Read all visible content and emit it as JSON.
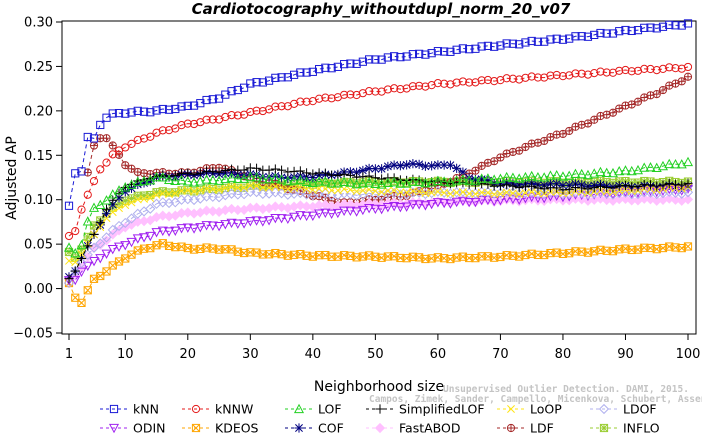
{
  "chart_data": {
    "type": "line",
    "title": "Cardiotocography_withoutdupl_norm_20_v07",
    "xlabel": "Neighborhood size",
    "ylabel": "Adjusted AP",
    "xlim": [
      1,
      100
    ],
    "ylim": [
      -0.05,
      0.3
    ],
    "xticks": [
      "1",
      "10",
      "20",
      "30",
      "40",
      "50",
      "60",
      "70",
      "80",
      "90",
      "100"
    ],
    "yticks": [
      "−0.05",
      "0.00",
      "0.05",
      "0.10",
      "0.15",
      "0.20",
      "0.25",
      "0.30"
    ],
    "grid": false,
    "legend_position": "bottom",
    "credit": [
      "Unsupervised Outlier Detection. DAMI, 2015.",
      "Campos, Zimek, Sander, Campello, Micenkova, Schubert, Assent, Houle"
    ],
    "series": [
      {
        "name": "kNN",
        "color": "#1a1ad6",
        "marker": "square",
        "dash": "4,3",
        "points": [
          [
            1,
            0.092
          ],
          [
            2,
            0.13
          ],
          [
            3,
            0.133
          ],
          [
            4,
            0.17
          ],
          [
            5,
            0.168
          ],
          [
            6,
            0.185
          ],
          [
            7,
            0.193
          ],
          [
            8,
            0.196
          ],
          [
            10,
            0.198
          ],
          [
            15,
            0.2
          ],
          [
            20,
            0.205
          ],
          [
            25,
            0.215
          ],
          [
            30,
            0.23
          ],
          [
            40,
            0.245
          ],
          [
            50,
            0.258
          ],
          [
            60,
            0.266
          ],
          [
            70,
            0.274
          ],
          [
            80,
            0.281
          ],
          [
            90,
            0.29
          ],
          [
            100,
            0.298
          ]
        ]
      },
      {
        "name": "kNNW",
        "color": "#e41a1a",
        "marker": "circle",
        "dash": "4,3",
        "points": [
          [
            1,
            0.058
          ],
          [
            2,
            0.065
          ],
          [
            3,
            0.09
          ],
          [
            4,
            0.105
          ],
          [
            5,
            0.12
          ],
          [
            6,
            0.135
          ],
          [
            8,
            0.15
          ],
          [
            10,
            0.16
          ],
          [
            15,
            0.175
          ],
          [
            20,
            0.185
          ],
          [
            30,
            0.198
          ],
          [
            40,
            0.212
          ],
          [
            50,
            0.222
          ],
          [
            60,
            0.23
          ],
          [
            70,
            0.235
          ],
          [
            80,
            0.24
          ],
          [
            90,
            0.245
          ],
          [
            100,
            0.249
          ]
        ]
      },
      {
        "name": "LOF",
        "color": "#22d022",
        "marker": "triangle",
        "dash": "4,3",
        "points": [
          [
            1,
            0.045
          ],
          [
            2,
            0.04
          ],
          [
            3,
            0.05
          ],
          [
            4,
            0.075
          ],
          [
            5,
            0.09
          ],
          [
            7,
            0.1
          ],
          [
            10,
            0.115
          ],
          [
            15,
            0.125
          ],
          [
            20,
            0.12
          ],
          [
            30,
            0.125
          ],
          [
            40,
            0.12
          ],
          [
            50,
            0.118
          ],
          [
            60,
            0.12
          ],
          [
            70,
            0.124
          ],
          [
            80,
            0.127
          ],
          [
            90,
            0.132
          ],
          [
            100,
            0.142
          ]
        ]
      },
      {
        "name": "SimplifiedLOF",
        "color": "#000000",
        "marker": "plus",
        "dash": "4,3",
        "points": [
          [
            1,
            0.01
          ],
          [
            2,
            0.02
          ],
          [
            3,
            0.035
          ],
          [
            5,
            0.06
          ],
          [
            7,
            0.09
          ],
          [
            10,
            0.115
          ],
          [
            14,
            0.125
          ],
          [
            18,
            0.128
          ],
          [
            25,
            0.132
          ],
          [
            30,
            0.135
          ],
          [
            35,
            0.133
          ],
          [
            40,
            0.13
          ],
          [
            50,
            0.125
          ],
          [
            60,
            0.12
          ],
          [
            70,
            0.116
          ],
          [
            80,
            0.112
          ],
          [
            90,
            0.115
          ],
          [
            100,
            0.118
          ]
        ]
      },
      {
        "name": "LoOP",
        "color": "#ffe414",
        "marker": "x",
        "dash": "4,3",
        "points": [
          [
            1,
            0.03
          ],
          [
            2,
            0.03
          ],
          [
            3,
            0.04
          ],
          [
            5,
            0.06
          ],
          [
            7,
            0.08
          ],
          [
            10,
            0.095
          ],
          [
            15,
            0.105
          ],
          [
            20,
            0.11
          ],
          [
            30,
            0.115
          ],
          [
            40,
            0.112
          ],
          [
            50,
            0.11
          ],
          [
            60,
            0.108
          ],
          [
            70,
            0.107
          ],
          [
            80,
            0.108
          ],
          [
            90,
            0.11
          ],
          [
            100,
            0.114
          ]
        ]
      },
      {
        "name": "LDOF",
        "color": "#b0b0ee",
        "marker": "diamond",
        "dash": "4,3",
        "points": [
          [
            1,
            0.005
          ],
          [
            2,
            0.02
          ],
          [
            3,
            0.03
          ],
          [
            5,
            0.045
          ],
          [
            8,
            0.065
          ],
          [
            10,
            0.075
          ],
          [
            15,
            0.095
          ],
          [
            20,
            0.1
          ],
          [
            30,
            0.108
          ],
          [
            40,
            0.106
          ],
          [
            50,
            0.106
          ],
          [
            60,
            0.108
          ],
          [
            70,
            0.108
          ],
          [
            80,
            0.107
          ],
          [
            90,
            0.107
          ],
          [
            100,
            0.108
          ]
        ]
      },
      {
        "name": "ODIN",
        "color": "#a020f0",
        "marker": "triangle-down",
        "dash": "4,3",
        "points": [
          [
            1,
            0.008
          ],
          [
            2,
            0.01
          ],
          [
            3,
            0.02
          ],
          [
            5,
            0.03
          ],
          [
            7,
            0.04
          ],
          [
            10,
            0.05
          ],
          [
            15,
            0.063
          ],
          [
            20,
            0.068
          ],
          [
            30,
            0.075
          ],
          [
            40,
            0.083
          ],
          [
            50,
            0.09
          ],
          [
            60,
            0.096
          ],
          [
            70,
            0.1
          ],
          [
            80,
            0.104
          ],
          [
            90,
            0.108
          ],
          [
            100,
            0.112
          ]
        ]
      },
      {
        "name": "KDEOS",
        "color": "#ffa500",
        "marker": "square-x",
        "dash": "4,3",
        "points": [
          [
            1,
            0.005
          ],
          [
            2,
            -0.01
          ],
          [
            3,
            -0.015
          ],
          [
            5,
            0.01
          ],
          [
            8,
            0.025
          ],
          [
            10,
            0.035
          ],
          [
            13,
            0.045
          ],
          [
            16,
            0.05
          ],
          [
            20,
            0.045
          ],
          [
            25,
            0.045
          ],
          [
            30,
            0.04
          ],
          [
            40,
            0.037
          ],
          [
            50,
            0.036
          ],
          [
            60,
            0.034
          ],
          [
            70,
            0.036
          ],
          [
            80,
            0.04
          ],
          [
            90,
            0.044
          ],
          [
            100,
            0.047
          ]
        ]
      },
      {
        "name": "COF",
        "color": "#000080",
        "marker": "asterisk",
        "dash": "4,3",
        "points": [
          [
            1,
            0.012
          ],
          [
            2,
            0.02
          ],
          [
            3,
            0.035
          ],
          [
            5,
            0.06
          ],
          [
            7,
            0.085
          ],
          [
            10,
            0.11
          ],
          [
            15,
            0.125
          ],
          [
            20,
            0.128
          ],
          [
            25,
            0.13
          ],
          [
            30,
            0.128
          ],
          [
            35,
            0.125
          ],
          [
            40,
            0.126
          ],
          [
            45,
            0.13
          ],
          [
            50,
            0.135
          ],
          [
            55,
            0.14
          ],
          [
            60,
            0.138
          ],
          [
            62,
            0.14
          ],
          [
            65,
            0.125
          ],
          [
            70,
            0.118
          ],
          [
            80,
            0.117
          ],
          [
            90,
            0.115
          ],
          [
            100,
            0.115
          ]
        ]
      },
      {
        "name": "FastABOD",
        "color": "#ffc0ff",
        "marker": "diamond-filled",
        "dash": "4,3",
        "points": [
          [
            1,
            0.01
          ],
          [
            2,
            0.015
          ],
          [
            3,
            0.025
          ],
          [
            5,
            0.045
          ],
          [
            8,
            0.06
          ],
          [
            10,
            0.07
          ],
          [
            15,
            0.08
          ],
          [
            20,
            0.085
          ],
          [
            30,
            0.09
          ],
          [
            40,
            0.093
          ],
          [
            50,
            0.095
          ],
          [
            60,
            0.097
          ],
          [
            70,
            0.099
          ],
          [
            80,
            0.1
          ],
          [
            90,
            0.1
          ],
          [
            100,
            0.1
          ]
        ]
      },
      {
        "name": "LDF",
        "color": "#a52a2a",
        "marker": "circle-plus",
        "dash": "4,3",
        "points": [
          [
            4,
            0.13
          ],
          [
            5,
            0.16
          ],
          [
            6,
            0.17
          ],
          [
            7,
            0.17
          ],
          [
            8,
            0.16
          ],
          [
            9,
            0.15
          ],
          [
            10,
            0.14
          ],
          [
            12,
            0.13
          ],
          [
            15,
            0.13
          ],
          [
            20,
            0.13
          ],
          [
            25,
            0.137
          ],
          [
            30,
            0.125
          ],
          [
            35,
            0.115
          ],
          [
            40,
            0.105
          ],
          [
            45,
            0.096
          ],
          [
            50,
            0.1
          ],
          [
            55,
            0.105
          ],
          [
            60,
            0.115
          ],
          [
            65,
            0.13
          ],
          [
            70,
            0.148
          ],
          [
            75,
            0.162
          ],
          [
            80,
            0.175
          ],
          [
            85,
            0.19
          ],
          [
            90,
            0.205
          ],
          [
            95,
            0.22
          ],
          [
            100,
            0.238
          ]
        ]
      },
      {
        "name": "INFLO",
        "color": "#9acd32",
        "marker": "square-asterisk",
        "dash": "4,3",
        "points": [
          [
            1,
            0.04
          ],
          [
            2,
            0.035
          ],
          [
            3,
            0.045
          ],
          [
            5,
            0.07
          ],
          [
            7,
            0.085
          ],
          [
            10,
            0.1
          ],
          [
            15,
            0.108
          ],
          [
            20,
            0.11
          ],
          [
            30,
            0.115
          ],
          [
            40,
            0.118
          ],
          [
            50,
            0.12
          ],
          [
            60,
            0.12
          ],
          [
            70,
            0.12
          ],
          [
            80,
            0.12
          ],
          [
            90,
            0.12
          ],
          [
            100,
            0.12
          ]
        ]
      }
    ]
  }
}
